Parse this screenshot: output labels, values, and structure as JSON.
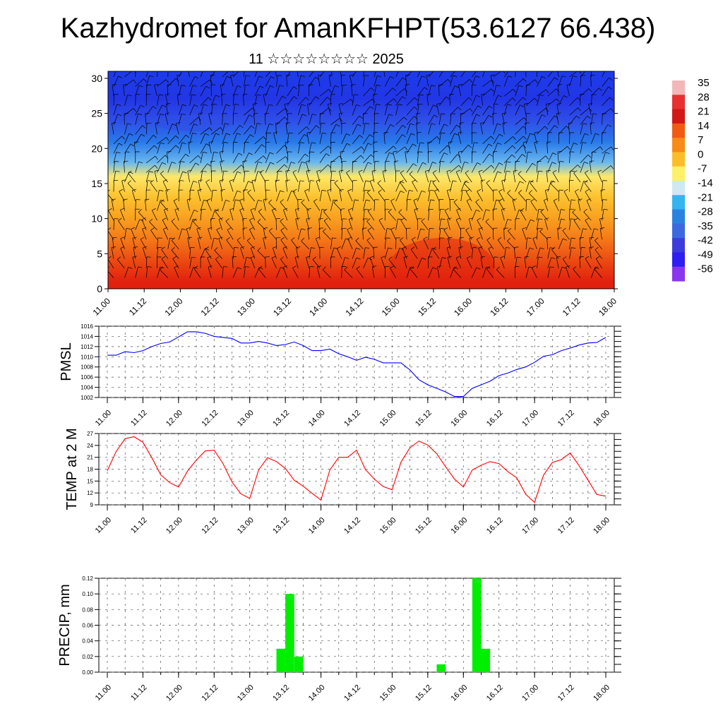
{
  "page": {
    "title": "Kazhydromet for AmanKFHPT(53.6127 66.438)",
    "subtitle": "11 ☆☆☆☆☆☆☆☆ 2025"
  },
  "chart_data": [
    {
      "type": "heatmap",
      "title": "",
      "xlabel": "",
      "ylabel": "",
      "x_ticks": [
        "11.00",
        "11.12",
        "12.00",
        "12.12",
        "13.00",
        "13.12",
        "14.00",
        "14.12",
        "15.00",
        "15.12",
        "16.00",
        "16.12",
        "17.00",
        "17.12",
        "18.00"
      ],
      "y_ticks": [
        0,
        5,
        10,
        15,
        20,
        25,
        30
      ],
      "ylim": [
        0,
        31
      ],
      "colorbar": {
        "labels": [
          "35",
          "28",
          "21",
          "14",
          "7",
          "0",
          "-7",
          "-14",
          "-21",
          "-28",
          "-35",
          "-42",
          "-49",
          "-56"
        ],
        "colors": [
          "#f3b7b7",
          "#e83030",
          "#d21717",
          "#f05a12",
          "#f88a18",
          "#fbbd2a",
          "#fdf06a",
          "#cfe8f2",
          "#35b4ef",
          "#2a82e0",
          "#3b6ae0",
          "#3c3cdc",
          "#2f1ef0",
          "#8a36ef"
        ]
      },
      "rows": [
        {
          "height_km": 30,
          "color": "#1e3ae8"
        },
        {
          "height_km": 27,
          "color": "#2236e6"
        },
        {
          "height_km": 24,
          "color": "#2f4ee8"
        },
        {
          "height_km": 21,
          "color": "#2878ea"
        },
        {
          "height_km": 18,
          "color": "#6ab8ee"
        },
        {
          "height_km": 16,
          "color": "#fde86a"
        },
        {
          "height_km": 13,
          "color": "#fcc12e"
        },
        {
          "height_km": 10,
          "color": "#f9a020"
        },
        {
          "height_km": 7,
          "color": "#f47818"
        },
        {
          "height_km": 4,
          "color": "#ec4a12"
        },
        {
          "height_km": 1,
          "color": "#e2200e"
        }
      ],
      "barbs": "wind barbs overlaid"
    },
    {
      "type": "line",
      "ylabel": "PMSL",
      "ylim": [
        1002,
        1016
      ],
      "y_ticks": [
        1002,
        1004,
        1006,
        1008,
        1010,
        1012,
        1014,
        1016
      ],
      "x_ticks": [
        "11.00",
        "11.12",
        "12.00",
        "12.12",
        "13.00",
        "13.12",
        "14.00",
        "14.12",
        "15.00",
        "15.12",
        "16.00",
        "16.12",
        "17.00",
        "17.12",
        "18.00"
      ],
      "color": "#0000ff",
      "x": [
        0,
        3,
        6,
        9,
        12,
        15,
        18,
        21,
        24,
        27,
        30,
        33,
        36,
        39,
        42,
        45,
        48,
        51,
        54,
        57,
        60,
        63,
        66,
        69,
        72,
        75,
        78,
        81,
        84,
        87,
        90,
        93,
        96,
        99,
        102,
        105,
        108,
        111,
        114,
        117,
        120,
        123,
        126,
        129,
        132,
        135,
        138,
        141,
        144,
        147,
        150,
        153,
        156,
        159,
        162,
        165,
        168
      ],
      "values": [
        1010.3,
        1010.3,
        1011,
        1010.8,
        1011.2,
        1012,
        1012.6,
        1012.9,
        1013.9,
        1014.9,
        1014.9,
        1014.6,
        1014,
        1013.8,
        1013.6,
        1012.7,
        1012.7,
        1013,
        1012.7,
        1012.2,
        1012.4,
        1012.9,
        1012.2,
        1011.2,
        1011.2,
        1011.5,
        1010.6,
        1010,
        1009.3,
        1009.9,
        1009.5,
        1008.8,
        1008.8,
        1008.8,
        1007.4,
        1005.5,
        1004.5,
        1003.8,
        1003.1,
        1002.2,
        1002.2,
        1003.8,
        1004.5,
        1005.2,
        1006.3,
        1006.8,
        1007.5,
        1008,
        1008.9,
        1010.1,
        1010.4,
        1011.2,
        1011.7,
        1012.3,
        1012.7,
        1012.8,
        1013.8
      ]
    },
    {
      "type": "line",
      "ylabel": "TEMP at 2 M",
      "ylim": [
        9,
        27
      ],
      "y_ticks": [
        9,
        12,
        15,
        18,
        21,
        24,
        27
      ],
      "x_ticks": [
        "11.00",
        "11.12",
        "12.00",
        "12.12",
        "13.00",
        "13.12",
        "14.00",
        "14.12",
        "15.00",
        "15.12",
        "16.00",
        "16.12",
        "17.00",
        "17.12",
        "18.00"
      ],
      "color": "#ff0000",
      "x": [
        0,
        3,
        6,
        9,
        12,
        15,
        18,
        21,
        24,
        27,
        30,
        33,
        36,
        39,
        42,
        45,
        48,
        51,
        54,
        57,
        60,
        63,
        66,
        69,
        72,
        75,
        78,
        81,
        84,
        87,
        90,
        93,
        96,
        99,
        102,
        105,
        108,
        111,
        114,
        117,
        120,
        123,
        126,
        129,
        132,
        135,
        138,
        141,
        144,
        147,
        150,
        153,
        156,
        159,
        162,
        165,
        168
      ],
      "values": [
        17.6,
        22.5,
        25.7,
        26.2,
        24.8,
        20.9,
        16.6,
        14.6,
        13.5,
        17.5,
        20.3,
        22.6,
        22.8,
        19.4,
        14.8,
        11.8,
        10.6,
        17.8,
        20.9,
        19.9,
        18.2,
        15.2,
        13.7,
        11.9,
        10.2,
        17.8,
        21,
        21,
        22.8,
        17.9,
        15.5,
        13.6,
        12.8,
        19.8,
        23.4,
        25.1,
        24.1,
        21.9,
        18.6,
        15.5,
        13.5,
        17.8,
        19,
        19.9,
        19.4,
        17.4,
        15.8,
        11.7,
        9.6,
        16.5,
        19.7,
        20.4,
        22.1,
        18.9,
        15.2,
        11.6,
        11.2
      ]
    },
    {
      "type": "bar",
      "ylabel": "PRECIP, mm",
      "ylim": [
        0,
        0.12
      ],
      "y_ticks": [
        "0.00",
        "0.02",
        "0.04",
        "0.06",
        "0.08",
        "0.10",
        "0.12"
      ],
      "x_ticks": [
        "11.00",
        "11.12",
        "12.00",
        "12.12",
        "13.00",
        "13.12",
        "14.00",
        "14.12",
        "15.00",
        "15.12",
        "16.00",
        "16.12",
        "17.00",
        "17.12",
        "18.00"
      ],
      "color": "#00ee00",
      "bars": [
        {
          "start": 57,
          "end": 60,
          "value": 0.03
        },
        {
          "start": 60,
          "end": 63,
          "value": 0.1
        },
        {
          "start": 63,
          "end": 66,
          "value": 0.02
        },
        {
          "start": 111,
          "end": 114,
          "value": 0.01
        },
        {
          "start": 123,
          "end": 126,
          "value": 0.12
        },
        {
          "start": 126,
          "end": 129,
          "value": 0.03
        }
      ]
    }
  ]
}
